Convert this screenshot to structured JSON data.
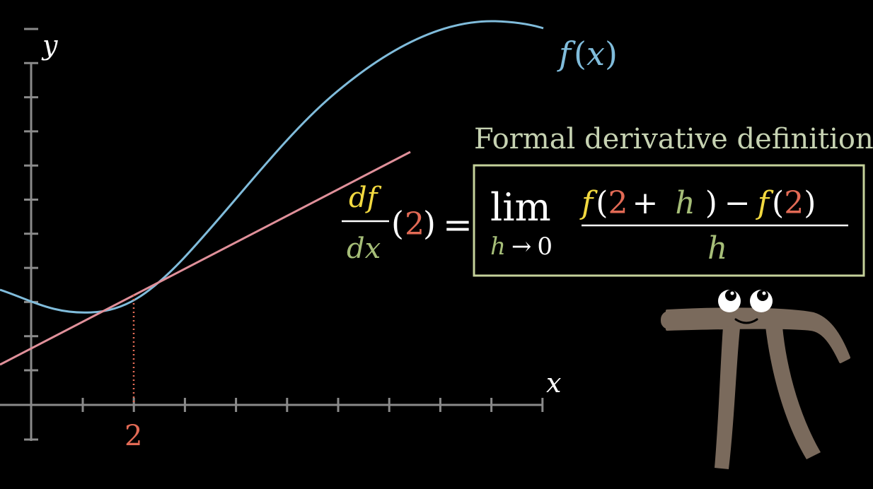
{
  "graph": {
    "y_axis_label": "y",
    "x_axis_label": "x",
    "curve_label_f": "f",
    "curve_label_open": "(",
    "curve_label_x": "x",
    "curve_label_close": ")",
    "point_label": "2"
  },
  "formula": {
    "title": "Formal derivative definition",
    "lhs": {
      "df": "df",
      "dx": "dx",
      "open": "(",
      "arg": "2",
      "close": ")",
      "equals": "="
    },
    "lim": "lim",
    "lim_sub": {
      "h": "h",
      "arrow": "→",
      "zero": "0"
    },
    "numerator": {
      "f1": "f",
      "open1": "(",
      "two1": "2",
      "plus": "+",
      "h": "h",
      "close1": ")",
      "minus": "−",
      "f2": "f",
      "open2": "(",
      "two2": "2",
      "close2": ")"
    },
    "denominator": "h"
  },
  "colors": {
    "background": "#000000",
    "axes": "#8a8a8a",
    "curve": "#80bcdb",
    "tangent": "#e0909a",
    "red": "#e26a55",
    "yellow": "#f2d940",
    "green": "#a6be78",
    "box_border": "#c4d19a",
    "title": "#c6d2b2",
    "white": "#ffffff",
    "pi_body": "#7a6a5c"
  },
  "icons": {
    "mascot": "pi-creature-icon"
  }
}
